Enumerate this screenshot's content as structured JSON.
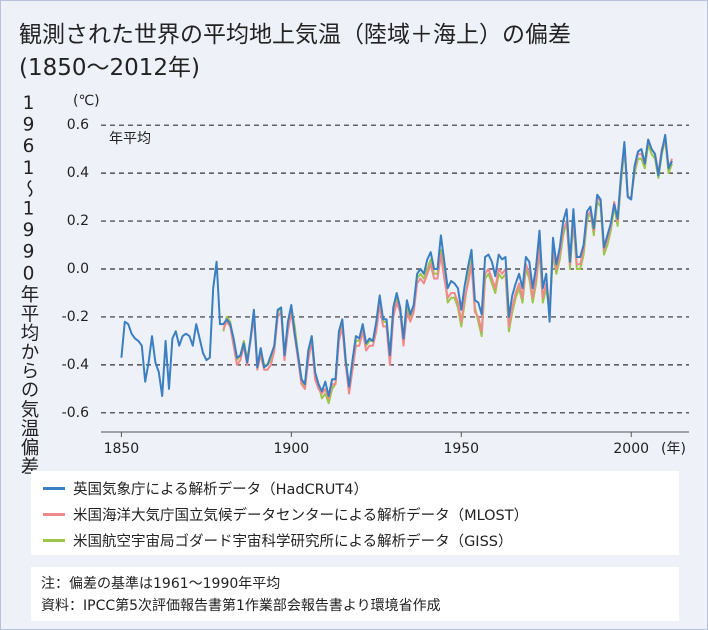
{
  "chart_data": {
    "type": "line",
    "title": "観測された世界の平均地上気温（陸域＋海上）の偏差",
    "subtitle": "(1850〜2012年)",
    "ylabel": "1961〜1990年平均からの気温偏差",
    "y_unit": "(℃)",
    "x_unit": "(年)",
    "annotation": "年平均",
    "xlim": [
      1844,
      2017
    ],
    "xticks": [
      1850,
      1900,
      1950,
      2000
    ],
    "ylim": [
      -0.68,
      0.68
    ],
    "yticks": [
      -0.6,
      -0.4,
      -0.2,
      {
        "value": 0,
        "label": "0.0"
      },
      0.2,
      0.4,
      0.6
    ],
    "grid": true,
    "x": [
      1850,
      1851,
      1852,
      1853,
      1854,
      1855,
      1856,
      1857,
      1858,
      1859,
      1860,
      1861,
      1862,
      1863,
      1864,
      1865,
      1866,
      1867,
      1868,
      1869,
      1870,
      1871,
      1872,
      1873,
      1874,
      1875,
      1876,
      1877,
      1878,
      1879,
      1880,
      1881,
      1882,
      1883,
      1884,
      1885,
      1886,
      1887,
      1888,
      1889,
      1890,
      1891,
      1892,
      1893,
      1894,
      1895,
      1896,
      1897,
      1898,
      1899,
      1900,
      1901,
      1902,
      1903,
      1904,
      1905,
      1906,
      1907,
      1908,
      1909,
      1910,
      1911,
      1912,
      1913,
      1914,
      1915,
      1916,
      1917,
      1918,
      1919,
      1920,
      1921,
      1922,
      1923,
      1924,
      1925,
      1926,
      1927,
      1928,
      1929,
      1930,
      1931,
      1932,
      1933,
      1934,
      1935,
      1936,
      1937,
      1938,
      1939,
      1940,
      1941,
      1942,
      1943,
      1944,
      1945,
      1946,
      1947,
      1948,
      1949,
      1950,
      1951,
      1952,
      1953,
      1954,
      1955,
      1956,
      1957,
      1958,
      1959,
      1960,
      1961,
      1962,
      1963,
      1964,
      1965,
      1966,
      1967,
      1968,
      1969,
      1970,
      1971,
      1972,
      1973,
      1974,
      1975,
      1976,
      1977,
      1978,
      1979,
      1980,
      1981,
      1982,
      1983,
      1984,
      1985,
      1986,
      1987,
      1988,
      1989,
      1990,
      1991,
      1992,
      1993,
      1994,
      1995,
      1996,
      1997,
      1998,
      1999,
      2000,
      2001,
      2002,
      2003,
      2004,
      2005,
      2006,
      2007,
      2008,
      2009,
      2010,
      2011,
      2012
    ],
    "series": [
      {
        "name": "英国気象庁による解析データ（HadCRUT4）",
        "color": "#3a7fc1",
        "values": [
          -0.37,
          -0.22,
          -0.23,
          -0.27,
          -0.29,
          -0.3,
          -0.32,
          -0.47,
          -0.39,
          -0.28,
          -0.39,
          -0.43,
          -0.53,
          -0.3,
          -0.5,
          -0.29,
          -0.26,
          -0.32,
          -0.28,
          -0.27,
          -0.28,
          -0.32,
          -0.23,
          -0.29,
          -0.35,
          -0.38,
          -0.37,
          -0.08,
          0.03,
          -0.23,
          -0.23,
          -0.21,
          -0.23,
          -0.29,
          -0.37,
          -0.36,
          -0.31,
          -0.39,
          -0.29,
          -0.17,
          -0.41,
          -0.33,
          -0.41,
          -0.4,
          -0.36,
          -0.32,
          -0.17,
          -0.16,
          -0.36,
          -0.22,
          -0.15,
          -0.27,
          -0.36,
          -0.46,
          -0.48,
          -0.34,
          -0.28,
          -0.43,
          -0.48,
          -0.51,
          -0.47,
          -0.53,
          -0.46,
          -0.46,
          -0.26,
          -0.21,
          -0.38,
          -0.49,
          -0.38,
          -0.28,
          -0.29,
          -0.23,
          -0.31,
          -0.29,
          -0.3,
          -0.22,
          -0.11,
          -0.21,
          -0.21,
          -0.36,
          -0.16,
          -0.1,
          -0.16,
          -0.29,
          -0.13,
          -0.19,
          -0.15,
          -0.02,
          0.0,
          -0.02,
          0.04,
          0.07,
          0.0,
          0.0,
          0.14,
          0.03,
          -0.08,
          -0.05,
          -0.06,
          -0.08,
          -0.17,
          -0.07,
          0.01,
          0.08,
          -0.13,
          -0.14,
          -0.19,
          0.05,
          0.06,
          0.03,
          -0.03,
          0.06,
          0.04,
          0.05,
          -0.2,
          -0.11,
          -0.06,
          -0.02,
          -0.08,
          0.05,
          0.03,
          -0.08,
          0.01,
          0.16,
          -0.08,
          -0.02,
          -0.22,
          0.13,
          0.02,
          0.09,
          0.2,
          0.25,
          0.03,
          0.25,
          0.05,
          0.05,
          0.1,
          0.24,
          0.26,
          0.17,
          0.31,
          0.29,
          0.09,
          0.14,
          0.19,
          0.27,
          0.21,
          0.39,
          0.53,
          0.3,
          0.29,
          0.43,
          0.49,
          0.5,
          0.44,
          0.54,
          0.5,
          0.48,
          0.39,
          0.49,
          0.56,
          0.42,
          0.45
        ]
      },
      {
        "name": "米国海洋大気庁国立気候データセンターによる解析データ（MLOST）",
        "color": "#f08a8a",
        "values": [
          null,
          null,
          null,
          null,
          null,
          null,
          null,
          null,
          null,
          null,
          null,
          null,
          null,
          null,
          null,
          null,
          null,
          null,
          null,
          null,
          null,
          null,
          null,
          null,
          null,
          null,
          null,
          null,
          null,
          null,
          -0.25,
          -0.22,
          -0.24,
          -0.32,
          -0.4,
          -0.38,
          -0.32,
          -0.4,
          -0.3,
          -0.2,
          -0.42,
          -0.36,
          -0.42,
          -0.42,
          -0.4,
          -0.34,
          -0.2,
          -0.18,
          -0.38,
          -0.26,
          -0.18,
          -0.28,
          -0.38,
          -0.48,
          -0.5,
          -0.38,
          -0.3,
          -0.46,
          -0.5,
          -0.52,
          -0.5,
          -0.54,
          -0.48,
          -0.48,
          -0.3,
          -0.24,
          -0.4,
          -0.52,
          -0.42,
          -0.32,
          -0.32,
          -0.26,
          -0.34,
          -0.32,
          -0.32,
          -0.26,
          -0.15,
          -0.24,
          -0.24,
          -0.4,
          -0.2,
          -0.14,
          -0.18,
          -0.32,
          -0.18,
          -0.22,
          -0.18,
          -0.06,
          -0.04,
          -0.06,
          -0.02,
          0.02,
          -0.04,
          -0.04,
          0.06,
          -0.04,
          -0.12,
          -0.1,
          -0.1,
          -0.14,
          -0.22,
          -0.12,
          -0.06,
          0.02,
          -0.18,
          -0.2,
          -0.26,
          -0.02,
          0.0,
          -0.04,
          -0.08,
          0.0,
          -0.02,
          0.0,
          -0.24,
          -0.16,
          -0.1,
          -0.06,
          -0.12,
          0.02,
          -0.02,
          -0.12,
          -0.04,
          0.1,
          -0.12,
          -0.06,
          -0.16,
          0.08,
          0.0,
          0.06,
          0.16,
          0.2,
          0.02,
          0.22,
          0.02,
          0.02,
          0.08,
          0.22,
          0.24,
          0.16,
          0.3,
          0.28,
          0.08,
          0.12,
          0.18,
          0.28,
          0.2,
          0.38,
          0.52,
          0.3,
          0.3,
          0.42,
          0.48,
          0.48,
          0.44,
          0.54,
          0.5,
          0.48,
          0.4,
          0.5,
          0.54,
          0.42,
          0.46
        ]
      },
      {
        "name": "米国航空宇宙局ゴダード宇宙科学研究所による解析データ（GISS）",
        "color": "#9cc64a",
        "values": [
          null,
          null,
          null,
          null,
          null,
          null,
          null,
          null,
          null,
          null,
          null,
          null,
          null,
          null,
          null,
          null,
          null,
          null,
          null,
          null,
          null,
          null,
          null,
          null,
          null,
          null,
          null,
          null,
          null,
          null,
          -0.26,
          -0.2,
          -0.22,
          -0.3,
          -0.38,
          -0.36,
          -0.3,
          -0.38,
          -0.3,
          -0.18,
          -0.4,
          -0.34,
          -0.4,
          -0.4,
          -0.38,
          -0.32,
          -0.18,
          -0.16,
          -0.36,
          -0.24,
          -0.16,
          -0.24,
          -0.36,
          -0.46,
          -0.5,
          -0.36,
          -0.28,
          -0.44,
          -0.48,
          -0.54,
          -0.52,
          -0.56,
          -0.5,
          -0.48,
          -0.28,
          -0.22,
          -0.38,
          -0.5,
          -0.4,
          -0.3,
          -0.3,
          -0.24,
          -0.32,
          -0.3,
          -0.3,
          -0.24,
          -0.12,
          -0.22,
          -0.22,
          -0.38,
          -0.18,
          -0.12,
          -0.16,
          -0.3,
          -0.16,
          -0.2,
          -0.16,
          -0.04,
          -0.02,
          -0.04,
          0.0,
          0.04,
          -0.02,
          -0.02,
          0.08,
          -0.02,
          -0.14,
          -0.12,
          -0.12,
          -0.16,
          -0.24,
          -0.14,
          -0.04,
          0.04,
          -0.16,
          -0.22,
          -0.28,
          -0.04,
          -0.02,
          -0.06,
          -0.1,
          -0.02,
          -0.04,
          -0.02,
          -0.26,
          -0.18,
          -0.12,
          -0.08,
          -0.14,
          0.0,
          -0.04,
          -0.14,
          -0.06,
          0.08,
          -0.14,
          -0.08,
          -0.18,
          0.06,
          -0.02,
          0.04,
          0.14,
          0.2,
          0.0,
          0.2,
          0.0,
          0.0,
          0.06,
          0.2,
          0.24,
          0.14,
          0.28,
          0.26,
          0.06,
          0.1,
          0.16,
          0.26,
          0.18,
          0.36,
          0.5,
          0.3,
          0.3,
          0.4,
          0.46,
          0.46,
          0.42,
          0.52,
          0.48,
          0.46,
          0.38,
          0.48,
          0.54,
          0.4,
          0.44
        ]
      }
    ]
  },
  "notes": [
    "注：偏差の基準は1961〜1990年平均",
    "資料：IPCC第5次評価報告書第1作業部会報告書より環境省作成"
  ]
}
